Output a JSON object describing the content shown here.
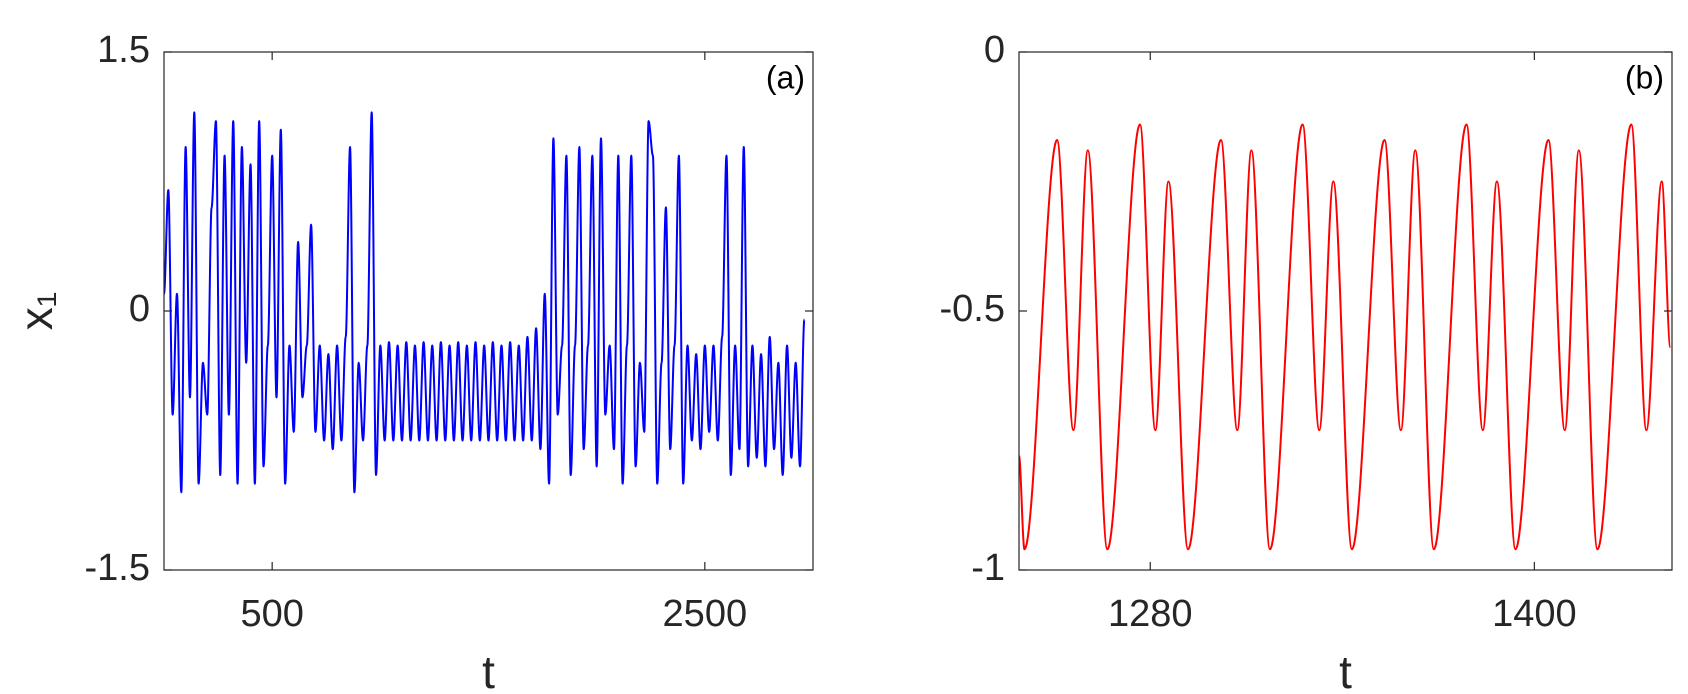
{
  "chart_data": [
    {
      "type": "line",
      "annotation": "(a)",
      "xlabel": "t",
      "ylabel": "x₁",
      "color": "#0000ff",
      "xlim": [
        0,
        3000
      ],
      "xticks": [
        500,
        2500
      ],
      "ylim": [
        -1.5,
        1.5
      ],
      "yticks": [
        -1.5,
        0,
        1.5
      ],
      "x": [
        0,
        20,
        40,
        60,
        80,
        100,
        120,
        140,
        160,
        180,
        200,
        220,
        240,
        260,
        280,
        300,
        320,
        340,
        360,
        380,
        400,
        420,
        440,
        460,
        480,
        500,
        520,
        540,
        560,
        580,
        600,
        620,
        640,
        660,
        680,
        700,
        720,
        740,
        760,
        780,
        800,
        820,
        840,
        860,
        880,
        900,
        920,
        940,
        960,
        980,
        1000,
        1020,
        1040,
        1060,
        1080,
        1100,
        1120,
        1140,
        1160,
        1180,
        1200,
        1220,
        1240,
        1260,
        1280,
        1300,
        1320,
        1340,
        1360,
        1380,
        1400,
        1420,
        1440,
        1460,
        1480,
        1500,
        1520,
        1540,
        1560,
        1580,
        1600,
        1620,
        1640,
        1660,
        1680,
        1700,
        1720,
        1740,
        1760,
        1780,
        1800,
        1820,
        1840,
        1860,
        1880,
        1900,
        1920,
        1940,
        1960,
        1980,
        2000,
        2020,
        2040,
        2060,
        2080,
        2100,
        2120,
        2140,
        2160,
        2180,
        2200,
        2220,
        2240,
        2260,
        2280,
        2300,
        2320,
        2340,
        2360,
        2380,
        2400,
        2420,
        2440,
        2460,
        2480,
        2500,
        2520,
        2540,
        2560,
        2580,
        2600,
        2620,
        2640,
        2660,
        2680,
        2700,
        2720,
        2740,
        2760,
        2780,
        2800,
        2820,
        2840,
        2860,
        2880,
        2900,
        2920,
        2940,
        2960
      ],
      "values": [
        0.1,
        0.7,
        -0.6,
        0.1,
        -1.05,
        0.95,
        -0.5,
        1.15,
        -1.0,
        -0.3,
        -0.6,
        0.6,
        1.1,
        -0.95,
        0.9,
        -0.6,
        1.1,
        -1.0,
        0.95,
        -0.3,
        0.85,
        -1.0,
        1.1,
        -0.9,
        -0.2,
        0.9,
        -0.5,
        1.05,
        -1.0,
        -0.2,
        -0.7,
        0.4,
        -0.5,
        -0.2,
        0.5,
        -0.7,
        -0.2,
        -0.75,
        -0.25,
        -0.8,
        -0.2,
        -0.75,
        -0.15,
        0.95,
        -1.05,
        -0.3,
        -0.75,
        -0.2,
        1.15,
        -0.95,
        -0.2,
        -0.75,
        -0.18,
        -0.75,
        -0.2,
        -0.75,
        -0.18,
        -0.75,
        -0.2,
        -0.75,
        -0.18,
        -0.75,
        -0.2,
        -0.75,
        -0.18,
        -0.75,
        -0.2,
        -0.75,
        -0.18,
        -0.75,
        -0.2,
        -0.75,
        -0.18,
        -0.75,
        -0.2,
        -0.75,
        -0.18,
        -0.75,
        -0.2,
        -0.75,
        -0.18,
        -0.75,
        -0.2,
        -0.75,
        -0.15,
        -0.75,
        -0.1,
        -0.8,
        0.1,
        -1.0,
        1.0,
        -0.6,
        -0.2,
        0.9,
        -0.95,
        -0.2,
        0.95,
        -0.8,
        -0.2,
        0.9,
        -0.9,
        1.0,
        -0.6,
        -0.2,
        -0.8,
        0.9,
        -1.0,
        -0.2,
        0.9,
        -0.9,
        -0.3,
        -0.7,
        1.1,
        0.9,
        -1.0,
        -0.3,
        0.6,
        -0.8,
        -0.2,
        0.9,
        -1.0,
        -0.2,
        -0.75,
        -0.25,
        -0.8,
        -0.2,
        -0.7,
        -0.2,
        -0.75,
        -0.15,
        0.9,
        -0.95,
        -0.2,
        -0.8,
        0.95,
        -0.9,
        -0.2,
        -0.85,
        -0.25,
        -0.9,
        -0.15,
        -0.8,
        -0.3,
        -0.95,
        -0.2,
        -0.85,
        -0.3,
        -0.9,
        -0.05
      ]
    },
    {
      "type": "line",
      "annotation": "(b)",
      "xlabel": "t",
      "color": "#ff0000",
      "xlim": [
        1239,
        1443
      ],
      "xticks": [
        1280,
        1400
      ],
      "ylim": [
        -1,
        0
      ],
      "yticks": [
        -1,
        -0.5,
        0
      ],
      "x": [
        1239,
        1240.7,
        1250.9,
        1256.0,
        1260.5,
        1266.6,
        1276.8,
        1281.6,
        1285.7,
        1291.8,
        1302.1,
        1307.2,
        1311.6,
        1317.4,
        1327.6,
        1332.8,
        1337.2,
        1343.0,
        1353.2,
        1358.3,
        1362.8,
        1368.6,
        1378.8,
        1383.9,
        1388.3,
        1394.1,
        1404.4,
        1409.5,
        1413.9,
        1419.7,
        1430.3,
        1435.0,
        1439.8,
        1442.5
      ],
      "values": [
        -0.78,
        -0.96,
        -0.17,
        -0.73,
        -0.19,
        -0.96,
        -0.14,
        -0.73,
        -0.25,
        -0.96,
        -0.17,
        -0.73,
        -0.19,
        -0.96,
        -0.14,
        -0.73,
        -0.25,
        -0.96,
        -0.17,
        -0.73,
        -0.19,
        -0.96,
        -0.14,
        -0.73,
        -0.25,
        -0.96,
        -0.17,
        -0.73,
        -0.19,
        -0.96,
        -0.14,
        -0.73,
        -0.25,
        -0.57
      ]
    }
  ]
}
